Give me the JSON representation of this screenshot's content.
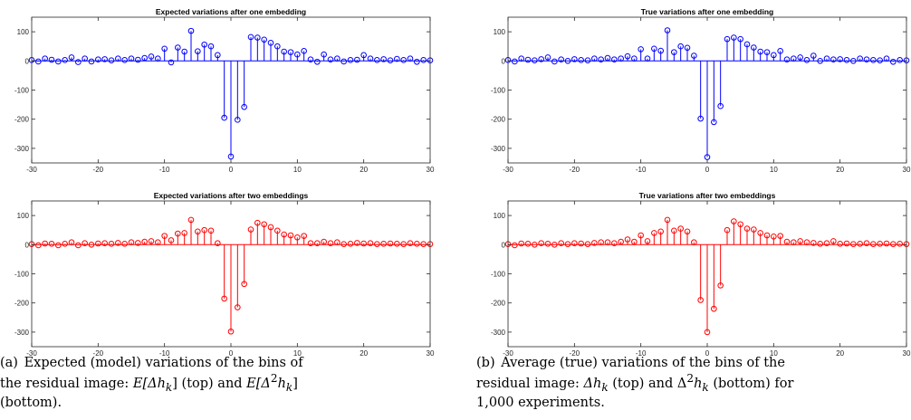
{
  "chart_data": [
    {
      "type": "stem",
      "title": "Expected variations after one embedding",
      "color": "#0000ff",
      "xlim": [
        -30,
        30
      ],
      "ylim": [
        -350,
        150
      ],
      "xticks": [
        -30,
        -20,
        -10,
        0,
        10,
        20,
        30
      ],
      "yticks": [
        -300,
        -200,
        -100,
        0,
        100
      ],
      "xlabel": "",
      "ylabel": "",
      "grid": false,
      "x": [
        -30,
        -29,
        -28,
        -27,
        -26,
        -25,
        -24,
        -23,
        -22,
        -21,
        -20,
        -19,
        -18,
        -17,
        -16,
        -15,
        -14,
        -13,
        -12,
        -11,
        -10,
        -9,
        -8,
        -7,
        -6,
        -5,
        -4,
        -3,
        -2,
        -1,
        0,
        1,
        2,
        3,
        4,
        5,
        6,
        7,
        8,
        9,
        10,
        11,
        12,
        13,
        14,
        15,
        16,
        17,
        18,
        19,
        20,
        21,
        22,
        23,
        24,
        25,
        26,
        27,
        28,
        29,
        30
      ],
      "y": [
        3,
        -2,
        8,
        4,
        -2,
        3,
        12,
        -4,
        8,
        -2,
        5,
        6,
        2,
        8,
        3,
        8,
        4,
        10,
        15,
        8,
        42,
        -5,
        46,
        32,
        103,
        33,
        56,
        50,
        20,
        -195,
        -328,
        -202,
        -158,
        82,
        80,
        73,
        62,
        50,
        32,
        30,
        22,
        34,
        5,
        -3,
        22,
        5,
        8,
        -2,
        3,
        4,
        20,
        8,
        3,
        6,
        2,
        7,
        3,
        8,
        -3,
        3,
        2
      ]
    },
    {
      "type": "stem",
      "title": "True variations after one embedding",
      "color": "#0000ff",
      "xlim": [
        -30,
        30
      ],
      "ylim": [
        -350,
        150
      ],
      "xticks": [
        -30,
        -20,
        -10,
        0,
        10,
        20,
        30
      ],
      "yticks": [
        -300,
        -200,
        -100,
        0,
        100
      ],
      "xlabel": "",
      "ylabel": "",
      "grid": false,
      "x": [
        -30,
        -29,
        -28,
        -27,
        -26,
        -25,
        -24,
        -23,
        -22,
        -21,
        -20,
        -19,
        -18,
        -17,
        -16,
        -15,
        -14,
        -13,
        -12,
        -11,
        -10,
        -9,
        -8,
        -7,
        -6,
        -5,
        -4,
        -3,
        -2,
        -1,
        0,
        1,
        2,
        3,
        4,
        5,
        6,
        7,
        8,
        9,
        10,
        11,
        12,
        13,
        14,
        15,
        16,
        17,
        18,
        19,
        20,
        21,
        22,
        23,
        24,
        25,
        26,
        27,
        28,
        29,
        30
      ],
      "y": [
        3,
        -2,
        8,
        4,
        2,
        6,
        12,
        -2,
        5,
        0,
        6,
        3,
        2,
        8,
        5,
        10,
        5,
        8,
        16,
        8,
        40,
        8,
        42,
        35,
        105,
        30,
        50,
        45,
        18,
        -198,
        -330,
        -210,
        -155,
        75,
        80,
        75,
        57,
        46,
        32,
        30,
        20,
        34,
        5,
        8,
        12,
        3,
        18,
        0,
        8,
        5,
        6,
        3,
        0,
        8,
        5,
        3,
        2,
        8,
        -3,
        3,
        2
      ]
    },
    {
      "type": "stem",
      "title": "Expected variations after two embeddings",
      "color": "#ff0000",
      "xlim": [
        -30,
        30
      ],
      "ylim": [
        -350,
        150
      ],
      "xticks": [
        -30,
        -20,
        -10,
        0,
        10,
        20,
        30
      ],
      "yticks": [
        -300,
        -200,
        -100,
        0,
        100
      ],
      "xlabel": "",
      "ylabel": "",
      "grid": false,
      "x": [
        -30,
        -29,
        -28,
        -27,
        -26,
        -25,
        -24,
        -23,
        -22,
        -21,
        -20,
        -19,
        -18,
        -17,
        -16,
        -15,
        -14,
        -13,
        -12,
        -11,
        -10,
        -9,
        -8,
        -7,
        -6,
        -5,
        -4,
        -3,
        -2,
        -1,
        0,
        1,
        2,
        3,
        4,
        5,
        6,
        7,
        8,
        9,
        10,
        11,
        12,
        13,
        14,
        15,
        16,
        17,
        18,
        19,
        20,
        21,
        22,
        23,
        24,
        25,
        26,
        27,
        28,
        29,
        30
      ],
      "y": [
        2,
        -2,
        4,
        3,
        -2,
        3,
        8,
        -2,
        5,
        0,
        4,
        5,
        3,
        6,
        3,
        8,
        6,
        10,
        12,
        8,
        30,
        15,
        38,
        40,
        85,
        45,
        50,
        48,
        5,
        -185,
        -298,
        -215,
        -135,
        52,
        75,
        70,
        60,
        48,
        35,
        32,
        25,
        30,
        5,
        5,
        10,
        5,
        8,
        2,
        3,
        6,
        4,
        5,
        2,
        3,
        4,
        3,
        2,
        5,
        3,
        2,
        2
      ]
    },
    {
      "type": "stem",
      "title": "True variations after two embeddings",
      "color": "#ff0000",
      "xlim": [
        -30,
        30
      ],
      "ylim": [
        -350,
        150
      ],
      "xticks": [
        -30,
        -20,
        -10,
        0,
        10,
        20,
        30
      ],
      "yticks": [
        -300,
        -200,
        -100,
        0,
        100
      ],
      "xlabel": "",
      "ylabel": "",
      "grid": false,
      "x": [
        -30,
        -29,
        -28,
        -27,
        -26,
        -25,
        -24,
        -23,
        -22,
        -21,
        -20,
        -19,
        -18,
        -17,
        -16,
        -15,
        -14,
        -13,
        -12,
        -11,
        -10,
        -9,
        -8,
        -7,
        -6,
        -5,
        -4,
        -3,
        -2,
        -1,
        0,
        1,
        2,
        3,
        4,
        5,
        6,
        7,
        8,
        9,
        10,
        11,
        12,
        13,
        14,
        15,
        16,
        17,
        18,
        19,
        20,
        21,
        22,
        23,
        24,
        25,
        26,
        27,
        28,
        29,
        30
      ],
      "y": [
        2,
        -2,
        4,
        3,
        0,
        5,
        3,
        0,
        5,
        2,
        5,
        4,
        2,
        6,
        8,
        8,
        5,
        10,
        18,
        10,
        32,
        12,
        40,
        45,
        85,
        48,
        55,
        45,
        8,
        -190,
        -300,
        -220,
        -140,
        50,
        80,
        70,
        55,
        52,
        40,
        32,
        28,
        30,
        10,
        8,
        12,
        8,
        6,
        3,
        5,
        12,
        3,
        4,
        2,
        3,
        5,
        2,
        3,
        4,
        2,
        3,
        2
      ]
    }
  ],
  "captions": {
    "a": {
      "label": "(a)",
      "line1_pre": "Expected (model) variations of the bins of",
      "line2_pre": "the residual image: ",
      "math1": "E[Δh",
      "sub1": "k",
      "math1_end": "]",
      "mid": " (top) and ",
      "math2": "E[Δ",
      "sup2": "2",
      "math2_h": "h",
      "sub2": "k",
      "math2_end": "]",
      "line3": "(bottom)."
    },
    "b": {
      "label": "(b)",
      "line1_pre": "Average (true) variations of the bins of the",
      "line2_pre": "residual image: ",
      "math1": "Δh",
      "sub1": "k",
      "mid": " (top) and ",
      "math2": "Δ",
      "sup2": "2",
      "math2_h": "h",
      "sub2": "k",
      "end": " (bottom) for",
      "line3": "1,000 experiments."
    }
  }
}
